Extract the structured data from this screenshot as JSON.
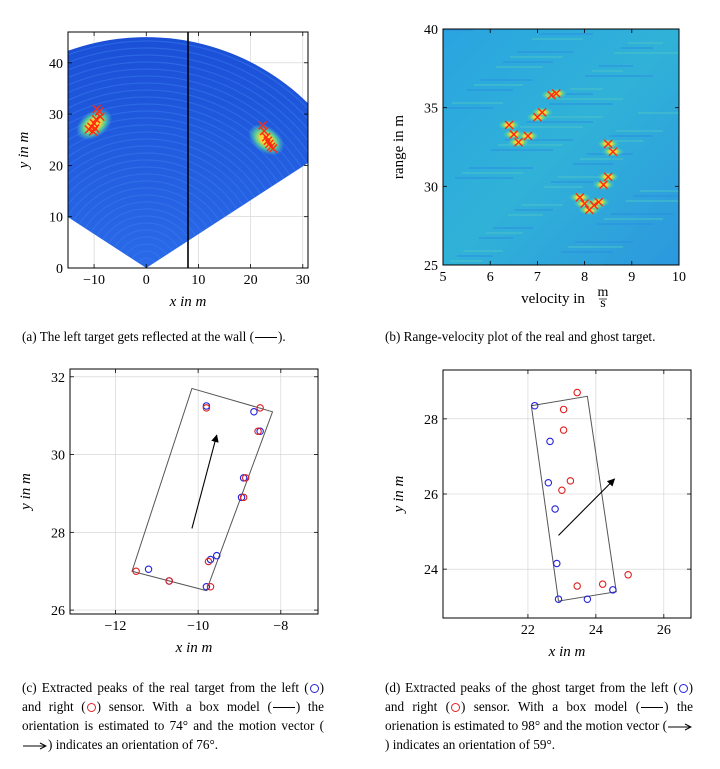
{
  "colors": {
    "left_sensor": "#2222dd",
    "right_sensor": "#e02020",
    "cross": "#ff2a10",
    "box": "#555555",
    "arrow": "#000000"
  },
  "captions": {
    "a": {
      "pre": "(a) The left target gets reflected at the wall (",
      "post": ")."
    },
    "b": {
      "text": "(b) Range-velocity plot of the real and ghost target."
    },
    "c": {
      "l1": "(c) Extracted peaks of the real target from the left (",
      "l2": ") and right (",
      "l3": ") sensor. With a box model (",
      "l4": ") the orientation is estimated to 74° and the motion vector (",
      "l5": ") indicates an orientation of 76°."
    },
    "d": {
      "l1": "(d) Extracted peaks of the ghost target from the left (",
      "l2": ") and right (",
      "l3": ") sensor. With a box model (",
      "l4": ") the orienation is estimated to 98° and the motion vector (",
      "l5": ") indicates an orientation of 59°."
    }
  },
  "chart_data": [
    {
      "id": "a",
      "type": "heatmap",
      "xlabel": "x in m",
      "ylabel": "y in m",
      "xlim": [
        -15,
        31
      ],
      "ylim": [
        0,
        46
      ],
      "xticks": [
        -10,
        0,
        10,
        20,
        30
      ],
      "yticks": [
        0,
        10,
        20,
        30,
        40
      ],
      "xticklabels": [
        "−10",
        "0",
        "10",
        "20",
        "30"
      ],
      "wall_x": 8,
      "targets_xy": [
        [
          -10,
          28
        ],
        [
          23,
          25
        ]
      ],
      "peaks_xy": [
        [
          -9.5,
          31
        ],
        [
          -9,
          30.5
        ],
        [
          -8.8,
          29.5
        ],
        [
          -9.6,
          29
        ],
        [
          -10,
          28.2
        ],
        [
          -10.5,
          27.5
        ],
        [
          -11,
          27
        ],
        [
          -10.2,
          26.6
        ],
        [
          -9.8,
          27.2
        ],
        [
          22.3,
          27.8
        ],
        [
          22.6,
          26.7
        ],
        [
          23,
          25.5
        ],
        [
          23.3,
          24.8
        ],
        [
          23.6,
          24.2
        ],
        [
          23.9,
          23.6
        ],
        [
          24.3,
          23.3
        ]
      ],
      "grid": true
    },
    {
      "id": "b",
      "type": "heatmap",
      "xlabel": "velocity in",
      "xunit_num": "m",
      "xunit_den": "s",
      "ylabel": "range in m",
      "xlim": [
        5,
        10
      ],
      "ylim": [
        25,
        40
      ],
      "xticks": [
        5,
        6,
        7,
        8,
        9,
        10
      ],
      "yticks": [
        25,
        30,
        35,
        40
      ],
      "peaks": [
        [
          6.4,
          33.9
        ],
        [
          6.5,
          33.3
        ],
        [
          6.6,
          32.8
        ],
        [
          6.8,
          33.2
        ],
        [
          7.0,
          34.4
        ],
        [
          7.1,
          34.7
        ],
        [
          7.3,
          35.8
        ],
        [
          7.4,
          35.9
        ],
        [
          8.5,
          32.7
        ],
        [
          8.6,
          32.2
        ],
        [
          8.5,
          30.6
        ],
        [
          8.4,
          30.1
        ],
        [
          7.9,
          29.3
        ],
        [
          8.0,
          28.9
        ],
        [
          8.1,
          28.5
        ],
        [
          8.2,
          28.8
        ],
        [
          8.3,
          29.0
        ]
      ]
    },
    {
      "id": "c",
      "type": "scatter",
      "xlabel": "x in m",
      "ylabel": "y in m",
      "xlim": [
        -13.1,
        -7.1
      ],
      "ylim": [
        25.9,
        32.2
      ],
      "xticks": [
        -12,
        -10,
        -8
      ],
      "yticks": [
        26,
        28,
        30,
        32
      ],
      "xticklabels": [
        "−12",
        "−10",
        "−8"
      ],
      "series": [
        {
          "name": "left",
          "points": [
            [
              -11.2,
              27.05
            ],
            [
              -10.7,
              26.75
            ],
            [
              -9.8,
              26.6
            ],
            [
              -9.7,
              27.3
            ],
            [
              -9.55,
              27.4
            ],
            [
              -9.8,
              31.25
            ],
            [
              -8.65,
              31.1
            ],
            [
              -8.5,
              30.6
            ],
            [
              -8.9,
              29.4
            ],
            [
              -8.95,
              28.9
            ]
          ]
        },
        {
          "name": "right",
          "points": [
            [
              -11.5,
              27.0
            ],
            [
              -10.7,
              26.75
            ],
            [
              -9.7,
              26.6
            ],
            [
              -9.75,
              27.25
            ],
            [
              -9.8,
              31.2
            ],
            [
              -8.5,
              31.2
            ],
            [
              -8.55,
              30.6
            ],
            [
              -8.85,
              29.4
            ],
            [
              -8.9,
              28.9
            ]
          ]
        }
      ],
      "box": [
        [
          -11.6,
          27.0
        ],
        [
          -9.8,
          26.5
        ],
        [
          -8.2,
          31.1
        ],
        [
          -10.15,
          31.7
        ]
      ],
      "arrow": [
        [
          -10.15,
          28.1
        ],
        [
          -9.55,
          30.5
        ]
      ]
    },
    {
      "id": "d",
      "type": "scatter",
      "xlabel": "x in m",
      "ylabel": "y in m",
      "xlim": [
        19.5,
        26.8
      ],
      "ylim": [
        22.7,
        29.3
      ],
      "xticks": [
        22,
        24,
        26
      ],
      "yticks": [
        24,
        26,
        28
      ],
      "series": [
        {
          "name": "left",
          "points": [
            [
              22.2,
              28.35
            ],
            [
              22.65,
              27.4
            ],
            [
              22.6,
              26.3
            ],
            [
              22.8,
              25.6
            ],
            [
              22.85,
              24.15
            ],
            [
              22.9,
              23.2
            ],
            [
              23.75,
              23.2
            ],
            [
              24.5,
              23.45
            ]
          ]
        },
        {
          "name": "right",
          "points": [
            [
              23.45,
              28.7
            ],
            [
              23.05,
              28.25
            ],
            [
              23.05,
              27.7
            ],
            [
              23.25,
              26.35
            ],
            [
              23.0,
              26.1
            ],
            [
              23.45,
              23.55
            ],
            [
              24.2,
              23.6
            ],
            [
              24.95,
              23.85
            ]
          ]
        }
      ],
      "box": [
        [
          22.1,
          28.35
        ],
        [
          23.75,
          28.6
        ],
        [
          24.6,
          23.4
        ],
        [
          22.9,
          23.15
        ]
      ],
      "arrow": [
        [
          22.9,
          24.9
        ],
        [
          24.55,
          26.4
        ]
      ]
    }
  ]
}
